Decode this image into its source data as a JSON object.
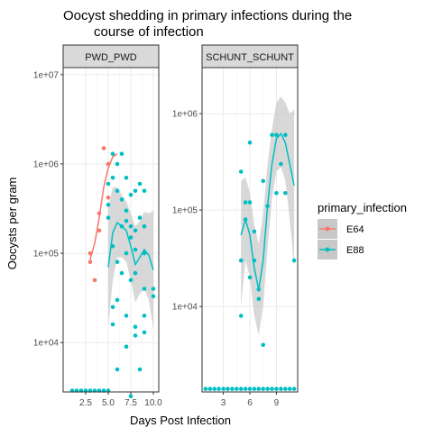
{
  "chart_data": {
    "type": "scatter",
    "title_lines": [
      "Oocyst shedding in primary infections during the",
      "course of infection"
    ],
    "xlabel": "Days Post Infection",
    "ylabel": "Oocysts per gram",
    "y_scale": "log10",
    "grid": true,
    "smoother": "loess with confidence band",
    "legend": {
      "title": "primary_infection",
      "position": "right",
      "entries": [
        {
          "label": "E64",
          "color": "#F8766D"
        },
        {
          "label": "E88",
          "color": "#00BFC4"
        }
      ]
    },
    "colors": {
      "E64": "#F8766D",
      "E88": "#00BFC4",
      "panel_background": "#FFFFFF",
      "panel_border": "#333333",
      "strip_background": "#D9D9D9",
      "grid": "#EBEBEB",
      "ribbon": "#C8C8C8"
    },
    "panels": [
      {
        "strip": "PWD_PWD",
        "xlim": [
          0,
          10.6
        ],
        "ylim": [
          2800,
          12000000
        ],
        "x_ticks": [
          2.5,
          5.0,
          7.5,
          10.0
        ],
        "x_tick_labels": [
          "2.5",
          "5.0",
          "7.5",
          "10.0"
        ],
        "y_ticks": [
          10000,
          100000,
          1000000,
          10000000
        ],
        "y_tick_labels": [
          "1e+04",
          "1e+05",
          "1e+06",
          "1e+07"
        ],
        "series": [
          {
            "name": "E64",
            "points": [
              [
                3,
                80000
              ],
              [
                3,
                100000
              ],
              [
                3.5,
                50000
              ],
              [
                4,
                180000
              ],
              [
                4,
                280000
              ],
              [
                4.5,
                1500000
              ],
              [
                5,
                1000000
              ],
              [
                5,
                420000
              ]
            ],
            "smooth": [
              [
                3,
                85000
              ],
              [
                3.5,
                130000
              ],
              [
                4,
                250000
              ],
              [
                4.5,
                550000
              ],
              [
                5,
                900000
              ],
              [
                5.5,
                1200000
              ],
              [
                6,
                1300000
              ]
            ]
          },
          {
            "name": "E88",
            "points": [
              [
                1,
                2900
              ],
              [
                1.5,
                2900
              ],
              [
                2,
                2900
              ],
              [
                2.5,
                2900
              ],
              [
                3,
                2900
              ],
              [
                3.5,
                2900
              ],
              [
                4,
                2900
              ],
              [
                4.5,
                2900
              ],
              [
                5,
                2900
              ],
              [
                5,
                600000
              ],
              [
                5,
                350000
              ],
              [
                5,
                250000
              ],
              [
                5.5,
                1300000
              ],
              [
                5.5,
                700000
              ],
              [
                5.5,
                120000
              ],
              [
                5.5,
                25000
              ],
              [
                5.5,
                16000
              ],
              [
                6,
                500000
              ],
              [
                6,
                1000000
              ],
              [
                6,
                30000
              ],
              [
                6,
                80000
              ],
              [
                6,
                5000
              ],
              [
                6.5,
                1300000
              ],
              [
                6.5,
                400000
              ],
              [
                6.5,
                200000
              ],
              [
                6.5,
                60000
              ],
              [
                7,
                700000
              ],
              [
                7,
                300000
              ],
              [
                7,
                230000
              ],
              [
                7,
                100000
              ],
              [
                7,
                20000
              ],
              [
                7,
                9000
              ],
              [
                7.5,
                450000
              ],
              [
                7.5,
                200000
              ],
              [
                7.5,
                150000
              ],
              [
                7.5,
                50000
              ],
              [
                7.5,
                2500
              ],
              [
                8,
                500000
              ],
              [
                8,
                180000
              ],
              [
                8,
                110000
              ],
              [
                8,
                60000
              ],
              [
                8,
                15000
              ],
              [
                8,
                12000
              ],
              [
                8.5,
                600000
              ],
              [
                8.5,
                250000
              ],
              [
                8.5,
                5000
              ],
              [
                9,
                500000
              ],
              [
                9,
                200000
              ],
              [
                9,
                100000
              ],
              [
                9,
                40000
              ],
              [
                9,
                13000
              ],
              [
                9,
                20000
              ],
              [
                10,
                40000
              ],
              [
                10,
                33000
              ]
            ],
            "smooth": [
              [
                5,
                70000
              ],
              [
                5.5,
                170000
              ],
              [
                6,
                220000
              ],
              [
                6.5,
                200000
              ],
              [
                7,
                180000
              ],
              [
                7.5,
                120000
              ],
              [
                8,
                75000
              ],
              [
                8.5,
                90000
              ],
              [
                9,
                110000
              ],
              [
                9.5,
                95000
              ],
              [
                10,
                65000
              ]
            ],
            "band_low": [
              [
                5,
                15000
              ],
              [
                5.5,
                50000
              ],
              [
                6,
                90000
              ],
              [
                6.5,
                90000
              ],
              [
                7,
                80000
              ],
              [
                7.5,
                50000
              ],
              [
                8,
                28000
              ],
              [
                8.5,
                35000
              ],
              [
                9,
                40000
              ],
              [
                9.5,
                30000
              ],
              [
                10,
                14000
              ]
            ],
            "band_high": [
              [
                5,
                320000
              ],
              [
                5.5,
                550000
              ],
              [
                6,
                550000
              ],
              [
                6.5,
                450000
              ],
              [
                7,
                380000
              ],
              [
                7.5,
                280000
              ],
              [
                8,
                200000
              ],
              [
                8.5,
                230000
              ],
              [
                9,
                290000
              ],
              [
                9.5,
                280000
              ],
              [
                10,
                300000
              ]
            ]
          }
        ]
      },
      {
        "strip": "SCHUNT_SCHUNT",
        "xlim": [
          0.6,
          11.4
        ],
        "ylim": [
          1300,
          3000000
        ],
        "x_ticks": [
          3,
          6,
          9
        ],
        "x_tick_labels": [
          "3",
          "6",
          "9"
        ],
        "y_ticks": [
          10000,
          100000,
          1000000
        ],
        "y_tick_labels": [
          "1e+04",
          "1e+05",
          "1e+06"
        ],
        "series": [
          {
            "name": "E88",
            "points": [
              [
                1,
                1400
              ],
              [
                1.5,
                1400
              ],
              [
                2,
                1400
              ],
              [
                2.5,
                1400
              ],
              [
                3,
                1400
              ],
              [
                3.5,
                1400
              ],
              [
                4,
                1400
              ],
              [
                4.5,
                1400
              ],
              [
                5,
                1400
              ],
              [
                5.5,
                1400
              ],
              [
                6,
                1400
              ],
              [
                6.5,
                1400
              ],
              [
                7,
                1400
              ],
              [
                7.5,
                1400
              ],
              [
                8,
                1400
              ],
              [
                8.5,
                1400
              ],
              [
                9,
                1400
              ],
              [
                9.5,
                1400
              ],
              [
                10,
                1400
              ],
              [
                10.5,
                1400
              ],
              [
                11,
                1400
              ],
              [
                5,
                250000
              ],
              [
                5,
                30000
              ],
              [
                5,
                8000
              ],
              [
                5.5,
                120000
              ],
              [
                5.5,
                80000
              ],
              [
                6,
                500000
              ],
              [
                6,
                120000
              ],
              [
                6,
                20000
              ],
              [
                6.5,
                60000
              ],
              [
                6.5,
                30000
              ],
              [
                7,
                15000
              ],
              [
                7,
                12000
              ],
              [
                7.5,
                4000
              ],
              [
                7.5,
                200000
              ],
              [
                8,
                110000
              ],
              [
                8.5,
                600000
              ],
              [
                9,
                600000
              ],
              [
                9,
                150000
              ],
              [
                9.5,
                300000
              ],
              [
                10,
                600000
              ],
              [
                10,
                150000
              ],
              [
                11,
                30000
              ]
            ],
            "smooth": [
              [
                5,
                55000
              ],
              [
                5.5,
                80000
              ],
              [
                6,
                55000
              ],
              [
                6.5,
                25000
              ],
              [
                7,
                15000
              ],
              [
                7.5,
                30000
              ],
              [
                8,
                110000
              ],
              [
                8.5,
                300000
              ],
              [
                9,
                550000
              ],
              [
                9.5,
                620000
              ],
              [
                10,
                500000
              ],
              [
                10.5,
                300000
              ],
              [
                11,
                180000
              ]
            ],
            "band_low": [
              [
                5,
                10000
              ],
              [
                5.5,
                30000
              ],
              [
                6,
                20000
              ],
              [
                6.5,
                8000
              ],
              [
                7,
                5000
              ],
              [
                7.5,
                10000
              ],
              [
                8,
                40000
              ],
              [
                8.5,
                130000
              ],
              [
                9,
                250000
              ],
              [
                9.5,
                280000
              ],
              [
                10,
                200000
              ],
              [
                10.5,
                80000
              ],
              [
                11,
                25000
              ]
            ],
            "band_high": [
              [
                5,
                200000
              ],
              [
                5.5,
                220000
              ],
              [
                6,
                150000
              ],
              [
                6.5,
                70000
              ],
              [
                7,
                45000
              ],
              [
                7.5,
                90000
              ],
              [
                8,
                300000
              ],
              [
                8.5,
                700000
              ],
              [
                9,
                1300000
              ],
              [
                9.5,
                1500000
              ],
              [
                10,
                1300000
              ],
              [
                10.5,
                1000000
              ],
              [
                11,
                1100000
              ]
            ]
          }
        ]
      }
    ]
  }
}
